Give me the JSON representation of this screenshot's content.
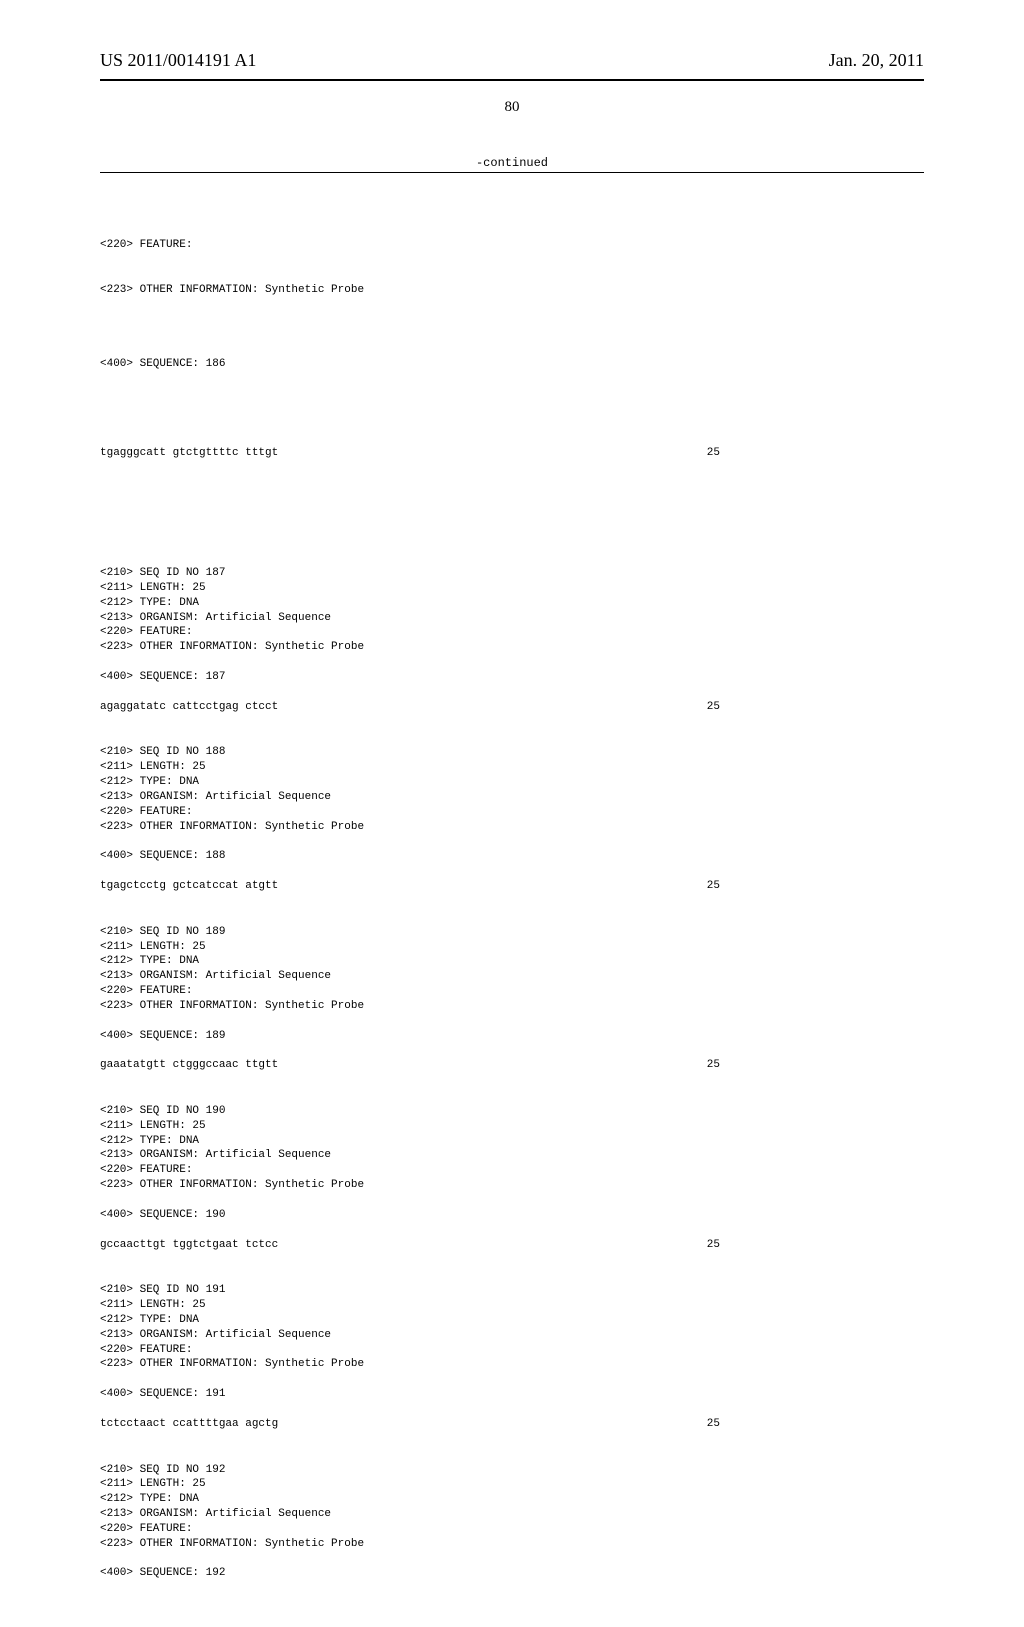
{
  "header": {
    "pub_number": "US 2011/0014191 A1",
    "pub_date": "Jan. 20, 2011"
  },
  "page_number": "80",
  "continued_label": "-continued",
  "initial_lines": [
    "<220> FEATURE:",
    "<223> OTHER INFORMATION: Synthetic Probe",
    "",
    "<400> SEQUENCE: 186"
  ],
  "initial_seq": {
    "sequence": "tgagggcatt gtctgttttc tttgt",
    "length": "25"
  },
  "entries": [
    {
      "header_lines": [
        "<210> SEQ ID NO 187",
        "<211> LENGTH: 25",
        "<212> TYPE: DNA",
        "<213> ORGANISM: Artificial Sequence",
        "<220> FEATURE:",
        "<223> OTHER INFORMATION: Synthetic Probe",
        "",
        "<400> SEQUENCE: 187"
      ],
      "sequence": "agaggatatc cattcctgag ctcct",
      "length": "25"
    },
    {
      "header_lines": [
        "<210> SEQ ID NO 188",
        "<211> LENGTH: 25",
        "<212> TYPE: DNA",
        "<213> ORGANISM: Artificial Sequence",
        "<220> FEATURE:",
        "<223> OTHER INFORMATION: Synthetic Probe",
        "",
        "<400> SEQUENCE: 188"
      ],
      "sequence": "tgagctcctg gctcatccat atgtt",
      "length": "25"
    },
    {
      "header_lines": [
        "<210> SEQ ID NO 189",
        "<211> LENGTH: 25",
        "<212> TYPE: DNA",
        "<213> ORGANISM: Artificial Sequence",
        "<220> FEATURE:",
        "<223> OTHER INFORMATION: Synthetic Probe",
        "",
        "<400> SEQUENCE: 189"
      ],
      "sequence": "gaaatatgtt ctgggccaac ttgtt",
      "length": "25"
    },
    {
      "header_lines": [
        "<210> SEQ ID NO 190",
        "<211> LENGTH: 25",
        "<212> TYPE: DNA",
        "<213> ORGANISM: Artificial Sequence",
        "<220> FEATURE:",
        "<223> OTHER INFORMATION: Synthetic Probe",
        "",
        "<400> SEQUENCE: 190"
      ],
      "sequence": "gccaacttgt tggtctgaat tctcc",
      "length": "25"
    },
    {
      "header_lines": [
        "<210> SEQ ID NO 191",
        "<211> LENGTH: 25",
        "<212> TYPE: DNA",
        "<213> ORGANISM: Artificial Sequence",
        "<220> FEATURE:",
        "<223> OTHER INFORMATION: Synthetic Probe",
        "",
        "<400> SEQUENCE: 191"
      ],
      "sequence": "tctcctaact ccattttgaa agctg",
      "length": "25"
    },
    {
      "header_lines": [
        "<210> SEQ ID NO 192",
        "<211> LENGTH: 25",
        "<212> TYPE: DNA",
        "<213> ORGANISM: Artificial Sequence",
        "<220> FEATURE:",
        "<223> OTHER INFORMATION: Synthetic Probe",
        "",
        "<400> SEQUENCE: 192"
      ],
      "sequence": "",
      "length": ""
    }
  ]
}
